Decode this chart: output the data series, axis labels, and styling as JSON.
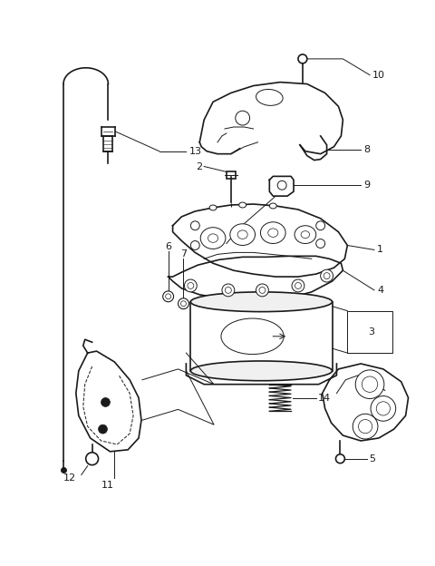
{
  "background_color": "#ffffff",
  "line_color": "#1a1a1a",
  "fig_width": 4.8,
  "fig_height": 6.24,
  "dpi": 100
}
